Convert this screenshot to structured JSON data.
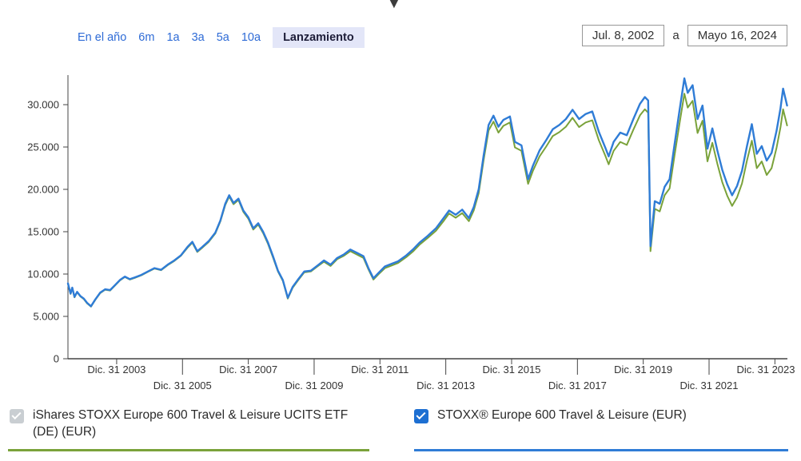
{
  "icons": {
    "collapse_chart": "▼"
  },
  "controls": {
    "tabs": [
      {
        "label": "En el año",
        "selected": false
      },
      {
        "label": "6m",
        "selected": false
      },
      {
        "label": "1a",
        "selected": false
      },
      {
        "label": "3a",
        "selected": false
      },
      {
        "label": "5a",
        "selected": false
      },
      {
        "label": "10a",
        "selected": false
      },
      {
        "label": "Lanzamiento",
        "selected": true
      }
    ],
    "date_from": "Jul. 8, 2002",
    "range_separator": "a",
    "date_to": "Mayo 16, 2024"
  },
  "legend": {
    "etf": {
      "label": "iShares STOXX Europe 600 Travel & Leisure UCITS ETF (DE) (EUR)",
      "checked": true,
      "checkbox_color": "#c9ced2",
      "color": "#7aa23a"
    },
    "index": {
      "label": "STOXX® Europe 600 Travel & Leisure (EUR)",
      "checked": true,
      "checkbox_color": "#1d6fd2",
      "color": "#2f7cd6"
    }
  },
  "colors": {
    "link_blue": "#2e6bd6",
    "selected_tab_bg": "#e3e6f8",
    "axis": "#444444",
    "text": "#333333"
  },
  "chart_data": {
    "type": "line",
    "title": "",
    "xlabel": "",
    "ylabel": "",
    "grid": false,
    "legend_position": "bottom",
    "ylim": [
      0,
      33500
    ],
    "yticks": [
      0,
      5000,
      10000,
      15000,
      20000,
      25000,
      30000
    ],
    "ytick_labels": [
      "0",
      "5.000",
      "10.000",
      "15.000",
      "20.000",
      "25.000",
      "30.000"
    ],
    "x_range": [
      2002.52,
      2024.38
    ],
    "xticks": [
      2004,
      2006,
      2008,
      2010,
      2012,
      2014,
      2016,
      2018,
      2020,
      2022,
      2024
    ],
    "xtick_labels": [
      "Dic. 31 2003",
      "Dic. 31 2005",
      "Dic. 31 2007",
      "Dic. 31 2009",
      "Dic. 31 2011",
      "Dic. 31 2013",
      "Dic. 31 2015",
      "Dic. 31 2017",
      "Dic. 31 2019",
      "Dic. 31 2021",
      "Dic. 31 2023"
    ],
    "x": [
      2002.52,
      2002.6,
      2002.65,
      2002.72,
      2002.8,
      2002.9,
      2003.0,
      2003.1,
      2003.22,
      2003.35,
      2003.5,
      2003.65,
      2003.8,
      2003.95,
      2004.1,
      2004.25,
      2004.4,
      2004.55,
      2004.75,
      2004.95,
      2005.15,
      2005.35,
      2005.55,
      2005.75,
      2005.95,
      2006.15,
      2006.3,
      2006.45,
      2006.6,
      2006.8,
      2007.0,
      2007.15,
      2007.3,
      2007.42,
      2007.55,
      2007.7,
      2007.85,
      2008.0,
      2008.15,
      2008.3,
      2008.45,
      2008.6,
      2008.75,
      2008.9,
      2009.05,
      2009.2,
      2009.35,
      2009.5,
      2009.7,
      2009.9,
      2010.1,
      2010.3,
      2010.5,
      2010.7,
      2010.9,
      2011.1,
      2011.3,
      2011.5,
      2011.65,
      2011.8,
      2011.95,
      2012.15,
      2012.35,
      2012.55,
      2012.8,
      2013.0,
      2013.2,
      2013.45,
      2013.7,
      2013.95,
      2014.1,
      2014.3,
      2014.5,
      2014.7,
      2014.85,
      2015.0,
      2015.15,
      2015.3,
      2015.45,
      2015.6,
      2015.75,
      2015.95,
      2016.1,
      2016.3,
      2016.5,
      2016.65,
      2016.85,
      2017.05,
      2017.25,
      2017.45,
      2017.65,
      2017.85,
      2018.05,
      2018.25,
      2018.45,
      2018.65,
      2018.85,
      2018.95,
      2019.1,
      2019.3,
      2019.5,
      2019.7,
      2019.9,
      2020.05,
      2020.15,
      2020.22,
      2020.35,
      2020.5,
      2020.65,
      2020.8,
      2020.95,
      2021.1,
      2021.25,
      2021.35,
      2021.5,
      2021.65,
      2021.8,
      2021.95,
      2022.1,
      2022.25,
      2022.4,
      2022.55,
      2022.7,
      2022.85,
      2023.0,
      2023.15,
      2023.3,
      2023.45,
      2023.6,
      2023.75,
      2023.9,
      2024.05,
      2024.17,
      2024.25,
      2024.37
    ],
    "series": [
      {
        "name": "iShares STOXX Europe 600 Travel & Leisure UCITS ETF (DE) (EUR)",
        "color": "#7aa23a",
        "width": 2,
        "values": [
          8850,
          7650,
          8350,
          7250,
          7850,
          7350,
          7050,
          6550,
          6150,
          6950,
          7750,
          8150,
          8050,
          8650,
          9250,
          9650,
          9350,
          9550,
          9850,
          10250,
          10650,
          10450,
          11050,
          11550,
          12150,
          13100,
          13700,
          12600,
          13100,
          13800,
          14800,
          16200,
          18150,
          19150,
          18250,
          18750,
          17350,
          16550,
          15250,
          15850,
          14850,
          13550,
          11950,
          10300,
          9200,
          7100,
          8400,
          9200,
          10200,
          10300,
          10900,
          11450,
          10950,
          11750,
          12150,
          12700,
          12300,
          11900,
          10550,
          9350,
          9950,
          10700,
          11000,
          11300,
          12000,
          12650,
          13450,
          14250,
          15100,
          16350,
          17150,
          16650,
          17200,
          16250,
          17500,
          19550,
          23450,
          26950,
          28000,
          26700,
          27500,
          27900,
          24950,
          24550,
          20650,
          22200,
          23900,
          25050,
          26300,
          26750,
          27400,
          28450,
          27350,
          27900,
          28150,
          25800,
          23950,
          22950,
          24550,
          25600,
          25250,
          27050,
          28750,
          29450,
          29050,
          12700,
          17700,
          17400,
          19300,
          20100,
          24000,
          27750,
          31300,
          29650,
          30450,
          26650,
          28100,
          23300,
          25500,
          23050,
          20850,
          19250,
          18050,
          19050,
          20700,
          23400,
          25750,
          22500,
          23300,
          21700,
          22500,
          24900,
          27350,
          29450,
          27550
        ]
      },
      {
        "name": "STOXX® Europe 600 Travel & Leisure (EUR)",
        "color": "#2f7cd6",
        "width": 2.4,
        "values": [
          8900,
          7700,
          8400,
          7300,
          7900,
          7400,
          7100,
          6600,
          6200,
          7000,
          7800,
          8200,
          8100,
          8700,
          9300,
          9700,
          9400,
          9600,
          9900,
          10300,
          10700,
          10500,
          11100,
          11600,
          12200,
          13200,
          13800,
          12700,
          13200,
          13900,
          14900,
          16300,
          18300,
          19300,
          18400,
          18900,
          17500,
          16700,
          15400,
          16000,
          15000,
          13700,
          12100,
          10400,
          9300,
          7200,
          8500,
          9300,
          10300,
          10400,
          11000,
          11600,
          11100,
          11900,
          12300,
          12900,
          12500,
          12100,
          10700,
          9500,
          10100,
          10900,
          11200,
          11500,
          12200,
          12900,
          13700,
          14500,
          15400,
          16700,
          17500,
          17000,
          17600,
          16600,
          17900,
          20000,
          24000,
          27600,
          28700,
          27400,
          28200,
          28600,
          25600,
          25200,
          21200,
          22800,
          24600,
          25800,
          27100,
          27600,
          28300,
          29400,
          28300,
          28900,
          29200,
          26800,
          24900,
          23900,
          25600,
          26700,
          26400,
          28300,
          30100,
          30900,
          30500,
          13300,
          18600,
          18300,
          20300,
          21200,
          25300,
          29300,
          33100,
          31400,
          32300,
          28300,
          29900,
          24800,
          27200,
          24600,
          22300,
          20600,
          19300,
          20400,
          22200,
          25100,
          27700,
          24200,
          25100,
          23400,
          24300,
          26900,
          29600,
          31900,
          29900
        ]
      }
    ]
  }
}
